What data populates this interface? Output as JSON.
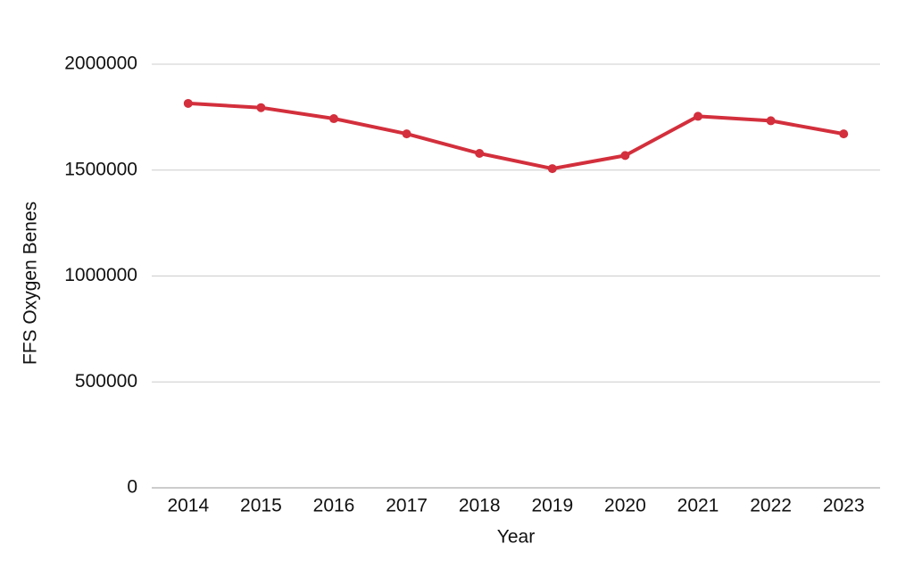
{
  "chart_data": {
    "type": "line",
    "title": "",
    "xlabel": "Year",
    "ylabel": "FFS Oxygen Benes",
    "categories": [
      "2014",
      "2015",
      "2016",
      "2017",
      "2018",
      "2019",
      "2020",
      "2021",
      "2022",
      "2023"
    ],
    "series": [
      {
        "values": [
          1815000,
          1795000,
          1743000,
          1671000,
          1579000,
          1507000,
          1569000,
          1754000,
          1733000,
          1671000
        ],
        "color": "#d32f3c",
        "markers": true
      }
    ],
    "ylim": [
      0,
      2000000
    ],
    "yticks": [
      0,
      500000,
      1000000,
      1500000,
      2000000
    ],
    "ytick_labels": [
      "0",
      "500000",
      "1000000",
      "1500000",
      "2000000"
    ],
    "grid": true,
    "grid_color": "#cccccc",
    "legend": false
  }
}
